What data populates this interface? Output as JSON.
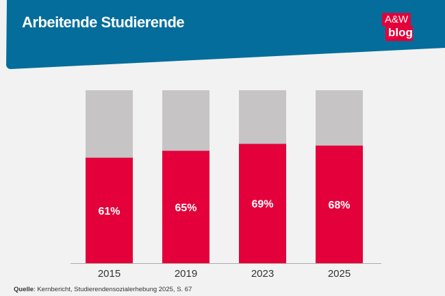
{
  "header": {
    "title": "Arbeitende Studierende",
    "logo_line1": "A&W",
    "logo_line2": "blog"
  },
  "colors": {
    "header": "#046d9b",
    "bar": "#e4003a",
    "remainder": "#c6c4c5",
    "background": "#f2f2f2"
  },
  "chart_data": {
    "type": "bar",
    "stacked_to_100": true,
    "categories": [
      "2015",
      "2019",
      "2023",
      "2025"
    ],
    "values": [
      61,
      65,
      69,
      68
    ],
    "data_labels": [
      "61%",
      "65%",
      "69%",
      "68%"
    ],
    "ylim": [
      0,
      100
    ],
    "grid": false
  },
  "source": {
    "label": "Quelle",
    "text": ": Kernbericht, Studierendensozialerhebung 2025, S. 67"
  }
}
